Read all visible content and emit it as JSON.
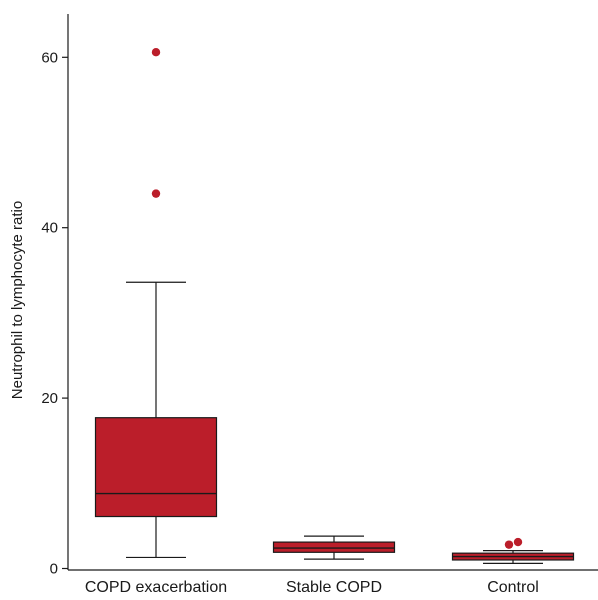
{
  "chart_data": {
    "type": "box",
    "ylabel": "Neutrophil to lymphocyte ratio",
    "xlabel": "",
    "ylim": [
      0,
      66
    ],
    "yticks": [
      0,
      20,
      40,
      60
    ],
    "grid": false,
    "legend": "none",
    "categories": [
      "COPD exacerbation",
      "Stable COPD",
      "Control"
    ],
    "boxes": [
      {
        "category": "COPD exacerbation",
        "min": 1.3,
        "q1": 6.1,
        "median": 8.8,
        "q3": 17.7,
        "max": 33.6,
        "outliers": [
          44.0,
          60.6
        ]
      },
      {
        "category": "Stable COPD",
        "min": 1.1,
        "q1": 1.9,
        "median": 2.4,
        "q3": 3.1,
        "max": 3.8,
        "outliers": []
      },
      {
        "category": "Control",
        "min": 0.6,
        "q1": 1.0,
        "median": 1.4,
        "q3": 1.8,
        "max": 2.1,
        "outliers": [
          2.8,
          3.1
        ]
      }
    ],
    "colors": {
      "box_fill": "#bb1e2a",
      "outlier": "#bb1e2a",
      "line": "#1a1a1a"
    }
  }
}
